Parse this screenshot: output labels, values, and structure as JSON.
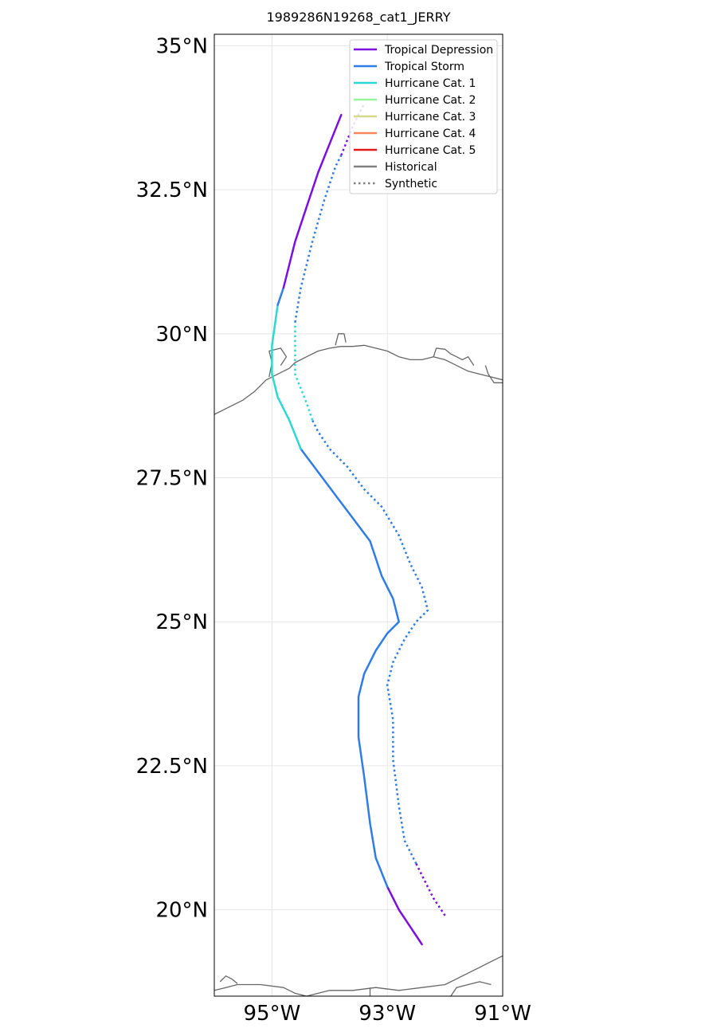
{
  "chart_data": {
    "type": "line",
    "title": "1989286N19268_cat1_JERRY",
    "xlim": [
      -96.0,
      -91.0
    ],
    "ylim": [
      18.5,
      35.2
    ],
    "grid": true,
    "legend_placement": "top-right",
    "x_ticks": [
      {
        "value": -95,
        "label": "95°W"
      },
      {
        "value": -93,
        "label": "93°W"
      },
      {
        "value": -91,
        "label": "91°W"
      }
    ],
    "y_ticks": [
      {
        "value": 20.0,
        "label": "20°N"
      },
      {
        "value": 22.5,
        "label": "22.5°N"
      },
      {
        "value": 25.0,
        "label": "25°N"
      },
      {
        "value": 27.5,
        "label": "27.5°N"
      },
      {
        "value": 30.0,
        "label": "30°N"
      },
      {
        "value": 32.5,
        "label": "32.5°N"
      },
      {
        "value": 35.0,
        "label": "35°N"
      }
    ],
    "legend": [
      {
        "label": "Tropical Depression",
        "color": "#7b0fe0",
        "style": "solid"
      },
      {
        "label": "Tropical Storm",
        "color": "#2f7ce8",
        "style": "solid"
      },
      {
        "label": "Hurricane Cat. 1",
        "color": "#2ed8d2",
        "style": "solid"
      },
      {
        "label": "Hurricane Cat. 2",
        "color": "#98f59a",
        "style": "solid"
      },
      {
        "label": "Hurricane Cat. 3",
        "color": "#d7d98a",
        "style": "solid"
      },
      {
        "label": "Hurricane Cat. 4",
        "color": "#f7845a",
        "style": "solid"
      },
      {
        "label": "Hurricane Cat. 5",
        "color": "#e01818",
        "style": "solid"
      },
      {
        "label": "Historical",
        "color": "#808080",
        "style": "solid"
      },
      {
        "label": "Synthetic",
        "color": "#808080",
        "style": "dotted"
      }
    ],
    "series": [
      {
        "style": "solid",
        "segments": [
          {
            "category": "Tropical Depression",
            "points": [
              [
                -92.4,
                19.4
              ],
              [
                -92.6,
                19.7
              ],
              [
                -92.8,
                20.0
              ],
              [
                -93.0,
                20.4
              ]
            ]
          },
          {
            "category": "Tropical Storm",
            "points": [
              [
                -93.0,
                20.4
              ],
              [
                -93.2,
                20.9
              ],
              [
                -93.3,
                21.5
              ],
              [
                -93.4,
                22.3
              ],
              [
                -93.5,
                23.0
              ],
              [
                -93.5,
                23.7
              ],
              [
                -93.4,
                24.1
              ],
              [
                -93.2,
                24.5
              ],
              [
                -93.0,
                24.8
              ],
              [
                -92.8,
                25.0
              ],
              [
                -92.9,
                25.4
              ],
              [
                -93.1,
                25.8
              ],
              [
                -93.3,
                26.4
              ],
              [
                -93.6,
                26.8
              ],
              [
                -93.9,
                27.2
              ],
              [
                -94.2,
                27.6
              ],
              [
                -94.5,
                28.0
              ]
            ]
          },
          {
            "category": "Hurricane Cat. 1",
            "points": [
              [
                -94.5,
                28.0
              ],
              [
                -94.7,
                28.5
              ],
              [
                -94.9,
                28.9
              ],
              [
                -95.0,
                29.3
              ],
              [
                -95.0,
                29.8
              ],
              [
                -94.9,
                30.5
              ]
            ]
          },
          {
            "category": "Tropical Storm",
            "points": [
              [
                -94.9,
                30.5
              ],
              [
                -94.8,
                30.8
              ]
            ]
          },
          {
            "category": "Tropical Depression",
            "points": [
              [
                -94.8,
                30.8
              ],
              [
                -94.6,
                31.6
              ],
              [
                -94.4,
                32.2
              ],
              [
                -94.2,
                32.8
              ],
              [
                -94.0,
                33.3
              ],
              [
                -93.8,
                33.8
              ]
            ]
          }
        ]
      },
      {
        "style": "dotted",
        "segments": [
          {
            "category": "Tropical Depression",
            "points": [
              [
                -92.0,
                19.9
              ],
              [
                -92.2,
                20.2
              ],
              [
                -92.4,
                20.6
              ],
              [
                -92.5,
                20.8
              ]
            ]
          },
          {
            "category": "Tropical Storm",
            "points": [
              [
                -92.5,
                20.8
              ],
              [
                -92.7,
                21.2
              ],
              [
                -92.8,
                21.8
              ],
              [
                -92.9,
                22.6
              ],
              [
                -92.9,
                23.3
              ],
              [
                -93.0,
                23.9
              ],
              [
                -92.9,
                24.3
              ],
              [
                -92.7,
                24.7
              ],
              [
                -92.5,
                25.0
              ],
              [
                -92.3,
                25.2
              ],
              [
                -92.4,
                25.6
              ],
              [
                -92.6,
                26.0
              ],
              [
                -92.8,
                26.5
              ],
              [
                -93.1,
                27.0
              ],
              [
                -93.4,
                27.3
              ],
              [
                -93.7,
                27.7
              ],
              [
                -94.0,
                28.0
              ],
              [
                -94.2,
                28.3
              ],
              [
                -94.3,
                28.5
              ]
            ]
          },
          {
            "category": "Hurricane Cat. 1",
            "points": [
              [
                -94.3,
                28.5
              ],
              [
                -94.4,
                28.8
              ],
              [
                -94.6,
                29.3
              ],
              [
                -94.6,
                29.7
              ],
              [
                -94.6,
                30.2
              ]
            ]
          },
          {
            "category": "Tropical Storm",
            "points": [
              [
                -94.6,
                30.2
              ],
              [
                -94.5,
                30.8
              ],
              [
                -94.3,
                31.6
              ],
              [
                -94.1,
                32.3
              ],
              [
                -93.9,
                32.9
              ],
              [
                -93.8,
                33.1
              ]
            ]
          },
          {
            "category": "Tropical Depression",
            "points": [
              [
                -93.8,
                33.1
              ],
              [
                -93.6,
                33.6
              ],
              [
                -93.4,
                34.0
              ]
            ]
          }
        ]
      }
    ]
  },
  "map_features": {
    "coastlines": [
      {
        "name": "texas-louisiana",
        "points": [
          [
            -96.0,
            28.6
          ],
          [
            -95.7,
            28.75
          ],
          [
            -95.5,
            28.85
          ],
          [
            -95.3,
            29.0
          ],
          [
            -95.1,
            29.2
          ],
          [
            -94.9,
            29.3
          ],
          [
            -94.7,
            29.4
          ],
          [
            -94.6,
            29.5
          ],
          [
            -94.4,
            29.6
          ],
          [
            -94.2,
            29.7
          ],
          [
            -94.0,
            29.75
          ],
          [
            -93.8,
            29.78
          ],
          [
            -93.6,
            29.78
          ],
          [
            -93.4,
            29.8
          ],
          [
            -93.2,
            29.75
          ],
          [
            -93.0,
            29.7
          ],
          [
            -92.8,
            29.6
          ],
          [
            -92.6,
            29.55
          ],
          [
            -92.4,
            29.55
          ],
          [
            -92.2,
            29.6
          ],
          [
            -92.0,
            29.55
          ],
          [
            -91.8,
            29.45
          ],
          [
            -91.6,
            29.35
          ],
          [
            -91.4,
            29.3
          ],
          [
            -91.2,
            29.25
          ],
          [
            -91.0,
            29.2
          ]
        ]
      },
      {
        "name": "galveston-bay",
        "points": [
          [
            -95.05,
            29.25
          ],
          [
            -95.0,
            29.5
          ],
          [
            -95.05,
            29.7
          ],
          [
            -94.85,
            29.75
          ],
          [
            -94.75,
            29.6
          ],
          [
            -94.85,
            29.45
          ]
        ]
      },
      {
        "name": "lake-calcasieu",
        "points": [
          [
            -93.9,
            29.8
          ],
          [
            -93.85,
            30.0
          ],
          [
            -93.75,
            30.0
          ],
          [
            -93.72,
            29.85
          ]
        ]
      },
      {
        "name": "vermilion-bay",
        "points": [
          [
            -92.2,
            29.6
          ],
          [
            -92.15,
            29.75
          ],
          [
            -92.0,
            29.73
          ],
          [
            -91.9,
            29.65
          ],
          [
            -91.8,
            29.6
          ],
          [
            -91.7,
            29.55
          ],
          [
            -91.6,
            29.6
          ],
          [
            -91.5,
            29.45
          ]
        ]
      },
      {
        "name": "terrebonne",
        "points": [
          [
            -91.3,
            29.45
          ],
          [
            -91.25,
            29.3
          ],
          [
            -91.15,
            29.15
          ],
          [
            -91.0,
            29.15
          ]
        ]
      },
      {
        "name": "yucatan-north",
        "points": [
          [
            -96.0,
            18.6
          ],
          [
            -95.8,
            18.65
          ],
          [
            -95.6,
            18.7
          ],
          [
            -95.2,
            18.7
          ],
          [
            -94.8,
            18.65
          ],
          [
            -94.6,
            18.55
          ],
          [
            -94.4,
            18.5
          ],
          [
            -94.2,
            18.55
          ],
          [
            -94.0,
            18.6
          ],
          [
            -93.6,
            18.6
          ],
          [
            -93.2,
            18.65
          ],
          [
            -92.8,
            18.6
          ],
          [
            -92.4,
            18.65
          ],
          [
            -92.0,
            18.7
          ],
          [
            -91.8,
            18.8
          ],
          [
            -91.6,
            18.9
          ],
          [
            -91.4,
            19.0
          ],
          [
            -91.2,
            19.1
          ],
          [
            -91.0,
            19.2
          ]
        ]
      },
      {
        "name": "terminos-lagoon",
        "points": [
          [
            -91.9,
            18.5
          ],
          [
            -91.8,
            18.65
          ],
          [
            -91.6,
            18.7
          ],
          [
            -91.4,
            18.75
          ],
          [
            -91.2,
            18.7
          ]
        ]
      },
      {
        "name": "tabasco-river",
        "points": [
          [
            -93.3,
            18.5
          ],
          [
            -93.3,
            18.65
          ]
        ]
      },
      {
        "name": "west-bay-inlet",
        "points": [
          [
            -95.9,
            18.75
          ],
          [
            -95.8,
            18.85
          ],
          [
            -95.7,
            18.8
          ],
          [
            -95.6,
            18.72
          ]
        ]
      }
    ]
  }
}
